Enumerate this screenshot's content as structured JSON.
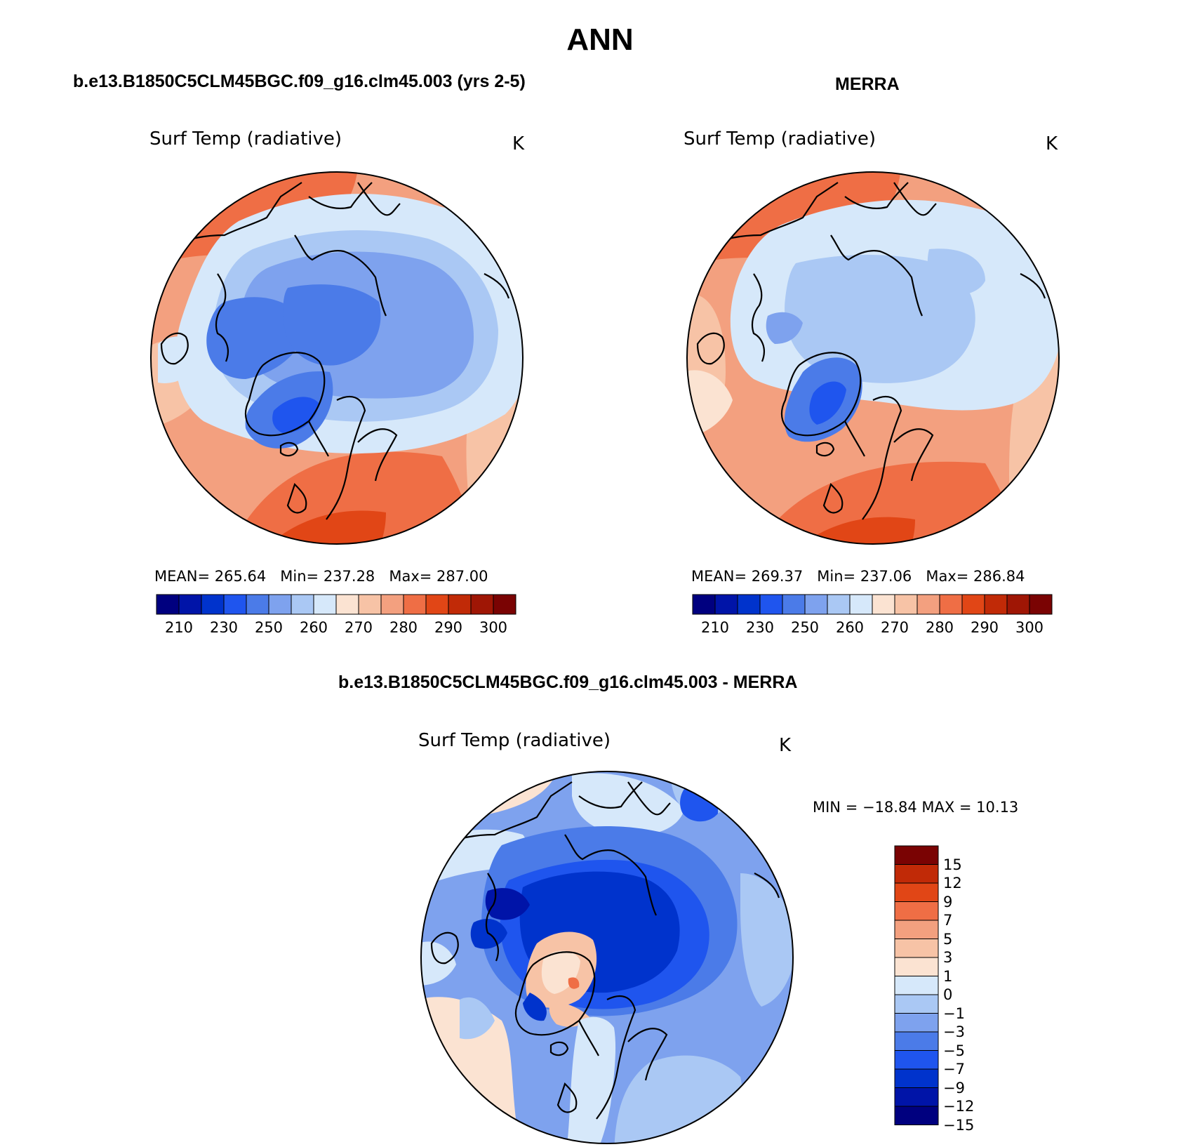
{
  "header": {
    "title": "ANN"
  },
  "panels": [
    {
      "id": "model",
      "case_title": "b.e13.B1850C5CLM45BGC.f09_g16.clm45.003 (yrs 2-5)",
      "variable": "Surf Temp (radiative)",
      "units": "K",
      "stats": {
        "mean_label": "MEAN=",
        "mean": "265.64",
        "min_label": "Min=",
        "min": "237.28",
        "max_label": "Max=",
        "max": "287.00"
      }
    },
    {
      "id": "obs",
      "case_title": "MERRA",
      "variable": "Surf Temp (radiative)",
      "units": "K",
      "stats": {
        "mean_label": "MEAN=",
        "mean": "269.37",
        "min_label": "Min=",
        "min": "237.06",
        "max_label": "Max=",
        "max": "286.84"
      }
    },
    {
      "id": "diff",
      "case_title": "b.e13.B1850C5CLM45BGC.f09_g16.clm45.003 - MERRA",
      "variable": "Surf Temp (radiative)",
      "units": "K",
      "stats": {
        "text": "MIN = −18.84 MAX =   10.13"
      }
    }
  ],
  "colorbars": {
    "abs": {
      "colors": [
        "#00007f",
        "#0014a8",
        "#0033cc",
        "#1f55ee",
        "#4b7be8",
        "#7ea2ee",
        "#aac8f4",
        "#d6e8fa",
        "#fbe3d2",
        "#f7c3a6",
        "#f3a07f",
        "#ef6e45",
        "#e14616",
        "#c12a07",
        "#9f1605",
        "#7a0303"
      ],
      "labels": [
        "210",
        "230",
        "250",
        "260",
        "270",
        "280",
        "290",
        "300"
      ]
    },
    "diff": {
      "colors": [
        "#00007f",
        "#0014a8",
        "#0033cc",
        "#1f55ee",
        "#4b7be8",
        "#7ea2ee",
        "#aac8f4",
        "#d6e8fa",
        "#fbe3d2",
        "#f7c3a6",
        "#f3a07f",
        "#ef6e45",
        "#e14616",
        "#c12a07",
        "#7a0303"
      ],
      "labels": [
        "15",
        "12",
        "9",
        "7",
        "5",
        "3",
        "1",
        "0",
        "−1",
        "−3",
        "−5",
        "−7",
        "−9",
        "−12",
        "−15"
      ]
    }
  },
  "chart_data": [
    {
      "type": "heatmap",
      "title": "Surf Temp (radiative)",
      "subtitle": "b.e13.B1850C5CLM45BGC.f09_g16.clm45.003 (yrs 2-5)",
      "projection": "north polar stereographic",
      "units": "K",
      "contour_levels": [
        210,
        220,
        230,
        240,
        250,
        255,
        260,
        265,
        270,
        275,
        280,
        285,
        290,
        295,
        300
      ],
      "mean": 265.64,
      "min": 237.28,
      "max": 287.0
    },
    {
      "type": "heatmap",
      "title": "Surf Temp (radiative)",
      "subtitle": "MERRA",
      "projection": "north polar stereographic",
      "units": "K",
      "contour_levels": [
        210,
        220,
        230,
        240,
        250,
        255,
        260,
        265,
        270,
        275,
        280,
        285,
        290,
        295,
        300
      ],
      "mean": 269.37,
      "min": 237.06,
      "max": 286.84
    },
    {
      "type": "heatmap",
      "title": "Surf Temp (radiative)",
      "subtitle": "b.e13.B1850C5CLM45BGC.f09_g16.clm45.003 - MERRA",
      "projection": "north polar stereographic",
      "units": "K",
      "contour_levels": [
        -15,
        -12,
        -9,
        -7,
        -5,
        -3,
        -1,
        0,
        1,
        3,
        5,
        7,
        9,
        12,
        15
      ],
      "min": -18.84,
      "max": 10.13
    }
  ]
}
